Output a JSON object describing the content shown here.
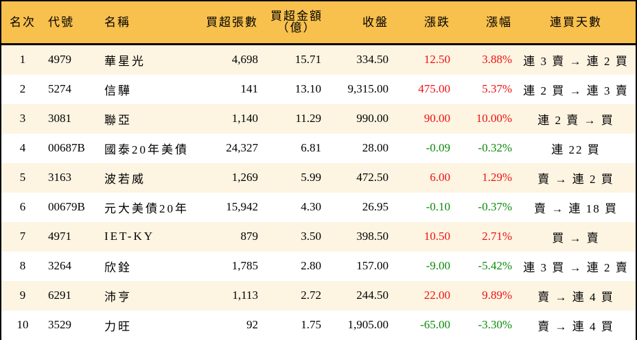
{
  "table": {
    "headers": {
      "rank": "名次",
      "code": "代號",
      "name": "名稱",
      "net_buy_lots": "買超張數",
      "net_buy_amount_line1": "買超金額",
      "net_buy_amount_line2": "（億）",
      "close": "收盤",
      "change": "漲跌",
      "change_pct": "漲幅",
      "streak": "連買天數"
    },
    "colors": {
      "header_bg": "#f8c04d",
      "row_odd_bg": "#fdf4e2",
      "row_even_bg": "#ffffff",
      "up": "#ee1111",
      "down": "#0a8a0a"
    },
    "rows": [
      {
        "rank": "1",
        "code": "4979",
        "name": "華星光",
        "lots": "4,698",
        "amount": "15.71",
        "close": "334.50",
        "change": "12.50",
        "pct": "3.88%",
        "dir": "up",
        "streak": "連 3 賣 → 連 2 買"
      },
      {
        "rank": "2",
        "code": "5274",
        "name": "信驊",
        "lots": "141",
        "amount": "13.10",
        "close": "9,315.00",
        "change": "475.00",
        "pct": "5.37%",
        "dir": "up",
        "streak": "連 2 買 → 連 3 賣"
      },
      {
        "rank": "3",
        "code": "3081",
        "name": "聯亞",
        "lots": "1,140",
        "amount": "11.29",
        "close": "990.00",
        "change": "90.00",
        "pct": "10.00%",
        "dir": "up",
        "streak": "連 2 賣 → 買"
      },
      {
        "rank": "4",
        "code": "00687B",
        "name": "國泰20年美債",
        "lots": "24,327",
        "amount": "6.81",
        "close": "28.00",
        "change": "-0.09",
        "pct": "-0.32%",
        "dir": "down",
        "streak": "連 22 買"
      },
      {
        "rank": "5",
        "code": "3163",
        "name": "波若威",
        "lots": "1,269",
        "amount": "5.99",
        "close": "472.50",
        "change": "6.00",
        "pct": "1.29%",
        "dir": "up",
        "streak": "賣 → 連 2 買"
      },
      {
        "rank": "6",
        "code": "00679B",
        "name": "元大美債20年",
        "lots": "15,942",
        "amount": "4.30",
        "close": "26.95",
        "change": "-0.10",
        "pct": "-0.37%",
        "dir": "down",
        "streak": "賣 → 連 18 買"
      },
      {
        "rank": "7",
        "code": "4971",
        "name": "IET-KY",
        "lots": "879",
        "amount": "3.50",
        "close": "398.50",
        "change": "10.50",
        "pct": "2.71%",
        "dir": "up",
        "streak": "買 → 賣"
      },
      {
        "rank": "8",
        "code": "3264",
        "name": "欣銓",
        "lots": "1,785",
        "amount": "2.80",
        "close": "157.00",
        "change": "-9.00",
        "pct": "-5.42%",
        "dir": "down",
        "streak": "連 3 買 → 連 2 賣"
      },
      {
        "rank": "9",
        "code": "6291",
        "name": "沛亨",
        "lots": "1,113",
        "amount": "2.72",
        "close": "244.50",
        "change": "22.00",
        "pct": "9.89%",
        "dir": "up",
        "streak": "賣 → 連 4 買"
      },
      {
        "rank": "10",
        "code": "3529",
        "name": "力旺",
        "lots": "92",
        "amount": "1.75",
        "close": "1,905.00",
        "change": "-65.00",
        "pct": "-3.30%",
        "dir": "down",
        "streak": "賣 → 連 4 買"
      }
    ]
  }
}
